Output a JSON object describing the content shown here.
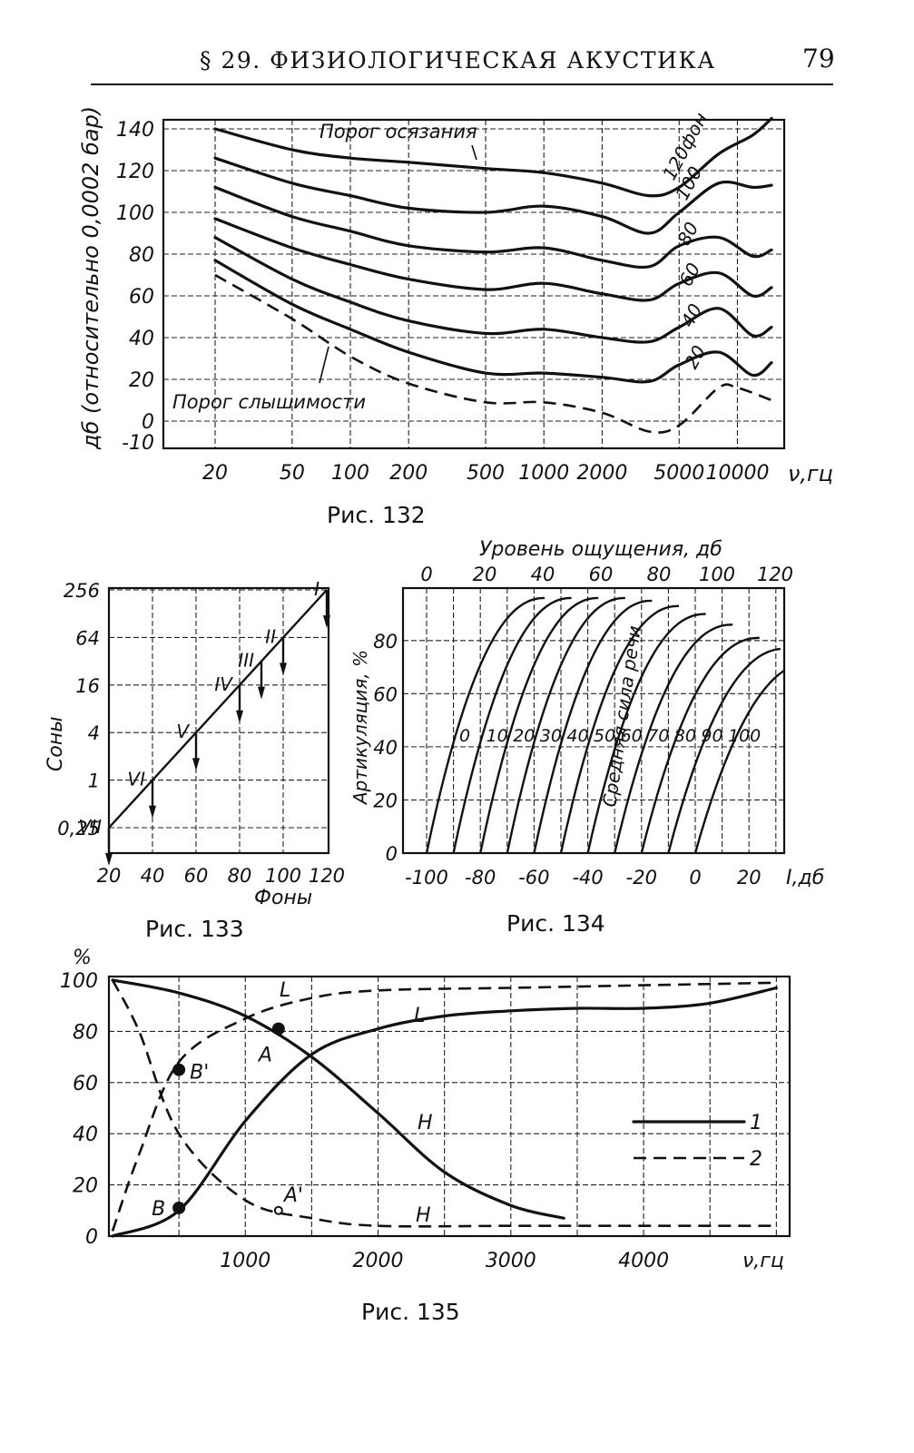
{
  "header": {
    "title": "§ 29. ФИЗИОЛОГИЧЕСКАЯ АКУСТИКА",
    "page_number": "79"
  },
  "figures": [
    {
      "caption": "Рис. 132"
    },
    {
      "caption": "Рис. 133"
    },
    {
      "caption": "Рис. 134"
    },
    {
      "caption": "Рис. 135"
    }
  ],
  "chart_data": [
    {
      "id": "fig132",
      "type": "line",
      "ylabel": "дб (относительно 0,0002 бар)",
      "xlabel": "ν,гц",
      "x_scale": "log",
      "x_ticks": [
        "20",
        "50",
        "100",
        "200",
        "500",
        "1000",
        "2000",
        "5000",
        "10000"
      ],
      "y_ticks": [
        "140",
        "120",
        "100",
        "80",
        "60",
        "40",
        "20",
        "0",
        "-10"
      ],
      "ylim": [
        -10,
        140
      ],
      "annotations": [
        "Порог осязания",
        "Порог слышимости"
      ],
      "series": [
        {
          "name": "120фон",
          "x": [
            20,
            50,
            100,
            200,
            500,
            1000,
            2000,
            3500,
            5000,
            8000,
            12000,
            15000
          ],
          "y": [
            140,
            130,
            126,
            124,
            121,
            119,
            114,
            108,
            112,
            128,
            137,
            145
          ]
        },
        {
          "name": "100",
          "x": [
            20,
            50,
            100,
            200,
            500,
            1000,
            2000,
            3500,
            5000,
            8000,
            12000,
            15000
          ],
          "y": [
            126,
            114,
            108,
            102,
            100,
            103,
            98,
            90,
            100,
            114,
            112,
            113
          ]
        },
        {
          "name": "80",
          "x": [
            20,
            50,
            100,
            200,
            500,
            1000,
            2000,
            3500,
            5000,
            8000,
            12000,
            15000
          ],
          "y": [
            112,
            98,
            91,
            84,
            81,
            83,
            77,
            74,
            84,
            88,
            79,
            82
          ]
        },
        {
          "name": "60",
          "x": [
            20,
            50,
            100,
            200,
            500,
            1000,
            2000,
            3500,
            5000,
            8000,
            12000,
            15000
          ],
          "y": [
            97,
            83,
            75,
            68,
            63,
            66,
            61,
            58,
            66,
            71,
            60,
            64
          ]
        },
        {
          "name": "40",
          "x": [
            20,
            50,
            100,
            200,
            500,
            1000,
            2000,
            3500,
            5000,
            8000,
            12000,
            15000
          ],
          "y": [
            88,
            68,
            57,
            48,
            42,
            44,
            40,
            38,
            45,
            54,
            41,
            45
          ]
        },
        {
          "name": "20",
          "x": [
            20,
            50,
            100,
            200,
            500,
            1000,
            2000,
            3500,
            5000,
            8000,
            12000,
            15000
          ],
          "y": [
            77,
            56,
            44,
            33,
            23,
            23,
            21,
            19,
            27,
            33,
            22,
            28
          ]
        },
        {
          "name": "Порог слышимости",
          "x": [
            20,
            50,
            100,
            200,
            500,
            1000,
            2000,
            3500,
            5000,
            8000,
            10000,
            15000
          ],
          "y": [
            70,
            49,
            31,
            18,
            9,
            9,
            4,
            -5,
            -2,
            16,
            16,
            10
          ]
        }
      ]
    },
    {
      "id": "fig133",
      "type": "line",
      "ylabel": "Соны",
      "xlabel": "Фоны",
      "x_ticks": [
        "20",
        "40",
        "60",
        "80",
        "100",
        "120"
      ],
      "y_ticks": [
        "256",
        "64",
        "16",
        "4",
        "1",
        "0,25"
      ],
      "point_labels": [
        "I",
        "II",
        "III",
        "IV",
        "V",
        "VI",
        "VII"
      ],
      "series": [
        {
          "x": [
            20,
            120
          ],
          "y": [
            0.25,
            256
          ]
        }
      ],
      "points": [
        {
          "label": "I",
          "x": 120,
          "y": 256
        },
        {
          "label": "II",
          "x": 100,
          "y": 64
        },
        {
          "label": "III",
          "x": 90,
          "y": 32
        },
        {
          "label": "IV",
          "x": 80,
          "y": 16
        },
        {
          "label": "V",
          "x": 60,
          "y": 4
        },
        {
          "label": "VI",
          "x": 40,
          "y": 1
        },
        {
          "label": "VII",
          "x": 20,
          "y": 0.25
        }
      ]
    },
    {
      "id": "fig134",
      "type": "line",
      "top_axis_label": "Уровень ощущения, дб",
      "top_ticks": [
        "0",
        "20",
        "40",
        "60",
        "80",
        "100",
        "120"
      ],
      "ylabel": "Артикуляция, %",
      "y_ticks": [
        "80",
        "60",
        "40",
        "20",
        "0"
      ],
      "xlabel": "I,дб",
      "x_ticks": [
        "-100",
        "-80",
        "-60",
        "-40",
        "-20",
        "0",
        "20"
      ],
      "inner_label": "Средняя сила речи",
      "curve_labels": [
        "0",
        "10",
        "20",
        "30",
        "40",
        "50",
        "60",
        "70",
        "80",
        "90",
        "100"
      ],
      "series_offsets": [
        -100,
        -90,
        -80,
        -70,
        -60,
        -50,
        -40,
        -30,
        -20,
        -10,
        0
      ]
    },
    {
      "id": "fig135",
      "type": "line",
      "ylabel": "%",
      "xlabel": "ν,гц",
      "x_ticks": [
        "1000",
        "2000",
        "3000",
        "4000"
      ],
      "y_ticks": [
        "100",
        "80",
        "60",
        "40",
        "20",
        "0"
      ],
      "point_labels": [
        "A",
        "B",
        "A'",
        "B'"
      ],
      "legend": [
        {
          "label": "1",
          "style": "solid"
        },
        {
          "label": "2",
          "style": "dashed"
        }
      ],
      "series": [
        {
          "name": "H",
          "style": "solid",
          "x": [
            0,
            500,
            1000,
            1500,
            2000,
            2500,
            3000,
            3400
          ],
          "y": [
            100,
            95,
            86,
            70,
            48,
            25,
            12,
            7
          ]
        },
        {
          "name": "L",
          "style": "solid",
          "x": [
            0,
            500,
            1000,
            1500,
            2000,
            2500,
            3000,
            3500,
            4000,
            4500,
            5000
          ],
          "y": [
            0,
            10,
            45,
            71,
            81,
            86,
            88,
            89,
            89,
            91,
            97
          ]
        },
        {
          "name": "H",
          "style": "dashed",
          "x": [
            0,
            200,
            500,
            1000,
            1500,
            2000,
            3000,
            4000,
            5000
          ],
          "y": [
            100,
            80,
            40,
            14,
            7,
            4,
            4,
            4,
            4
          ]
        },
        {
          "name": "L",
          "style": "dashed",
          "x": [
            0,
            200,
            500,
            1000,
            1500,
            2000,
            3000,
            4000,
            5000
          ],
          "y": [
            2,
            32,
            68,
            85,
            93,
            96,
            97,
            98,
            99
          ]
        }
      ],
      "points": [
        {
          "label": "A",
          "x": 1250,
          "y": 81
        },
        {
          "label": "B",
          "x": 500,
          "y": 11
        },
        {
          "label": "A'",
          "x": 1250,
          "y": 10
        },
        {
          "label": "B'",
          "x": 500,
          "y": 65
        }
      ]
    }
  ]
}
